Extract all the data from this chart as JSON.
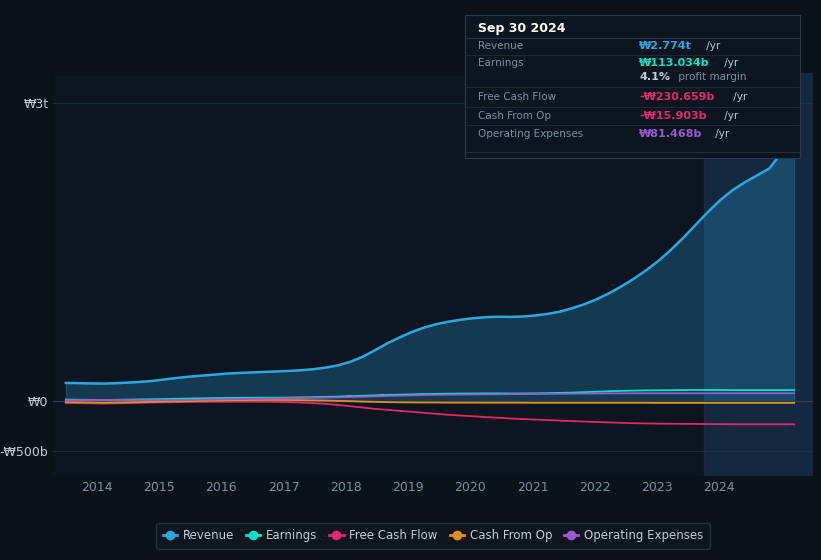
{
  "background_color": "#0b1219",
  "plot_bg_color": "#0d1520",
  "grid_color": "#1e2d3d",
  "xlabel_color": "#7a8fa0",
  "ylabel_color": "#c0ccd8",
  "revenue_color": "#29a8e0",
  "earnings_color": "#00e5c8",
  "fcf_color": "#e0286e",
  "cashfromop_color": "#e09020",
  "opex_color": "#9b59d0",
  "highlight_color": "#1a3a5c",
  "revenue": [
    185,
    183,
    180,
    178,
    182,
    188,
    195,
    205,
    220,
    235,
    248,
    258,
    268,
    278,
    285,
    290,
    295,
    300,
    305,
    312,
    322,
    338,
    360,
    395,
    445,
    510,
    580,
    640,
    695,
    740,
    775,
    800,
    820,
    835,
    845,
    850,
    848,
    852,
    862,
    878,
    900,
    935,
    975,
    1025,
    1085,
    1155,
    1230,
    1315,
    1410,
    1520,
    1640,
    1770,
    1900,
    2020,
    2120,
    2200,
    2270,
    2340,
    2500,
    2774
  ],
  "earnings": [
    18,
    16,
    15,
    14,
    15,
    17,
    19,
    21,
    23,
    26,
    28,
    30,
    32,
    34,
    35,
    36,
    37,
    37,
    38,
    40,
    42,
    45,
    48,
    52,
    56,
    60,
    64,
    67,
    70,
    73,
    75,
    77,
    78,
    79,
    80,
    80,
    79,
    79,
    80,
    82,
    85,
    88,
    92,
    97,
    101,
    105,
    108,
    110,
    111,
    112,
    113,
    114,
    114,
    114,
    113,
    113,
    113,
    113,
    113,
    113
  ],
  "fcf": [
    -15,
    -18,
    -20,
    -22,
    -20,
    -18,
    -15,
    -12,
    -10,
    -8,
    -6,
    -5,
    -4,
    -3,
    -2,
    -2,
    -3,
    -5,
    -8,
    -12,
    -18,
    -25,
    -35,
    -48,
    -62,
    -75,
    -85,
    -95,
    -105,
    -115,
    -125,
    -135,
    -143,
    -150,
    -158,
    -165,
    -172,
    -178,
    -183,
    -188,
    -193,
    -198,
    -203,
    -208,
    -212,
    -216,
    -220,
    -222,
    -224,
    -225,
    -226,
    -227,
    -228,
    -229,
    -230,
    -230,
    -230,
    -230,
    -230,
    -231
  ],
  "cashfromop": [
    -8,
    -10,
    -12,
    -14,
    -12,
    -10,
    -8,
    -5,
    -2,
    0,
    2,
    5,
    8,
    10,
    12,
    13,
    14,
    14,
    13,
    12,
    10,
    8,
    5,
    2,
    -2,
    -5,
    -8,
    -10,
    -11,
    -12,
    -12,
    -13,
    -13,
    -13,
    -14,
    -14,
    -14,
    -14,
    -15,
    -15,
    -15,
    -15,
    -15,
    -15,
    -15,
    -15,
    -15,
    -15,
    -16,
    -16,
    -16,
    -16,
    -16,
    -16,
    -16,
    -16,
    -16,
    -16,
    -16,
    -16
  ],
  "opex": [
    10,
    12,
    13,
    14,
    14,
    13,
    12,
    12,
    13,
    14,
    15,
    17,
    19,
    21,
    23,
    25,
    27,
    29,
    31,
    33,
    35,
    37,
    40,
    43,
    46,
    50,
    54,
    57,
    60,
    63,
    65,
    67,
    68,
    69,
    70,
    71,
    72,
    73,
    74,
    75,
    76,
    77,
    78,
    79,
    80,
    80,
    81,
    81,
    81,
    81,
    81,
    81,
    81,
    81,
    81,
    81,
    81,
    81,
    81,
    81
  ],
  "info_box": {
    "bg_color": "#0d1520",
    "border_color": "#2a3a4a",
    "title": "Sep 30 2024",
    "rows": [
      {
        "label": "Revenue",
        "value": "₩2.774t",
        "value_color": "#29a8e0",
        "suffix": " /yr",
        "suffix_color": "#c0ccd8"
      },
      {
        "label": "Earnings",
        "value": "₩113.034b",
        "value_color": "#00e5c8",
        "suffix": " /yr",
        "suffix_color": "#c0ccd8"
      },
      {
        "label": "",
        "value": "4.1%",
        "value_color": "#c0ccd8",
        "suffix": " profit margin",
        "suffix_color": "#7a8fa0"
      },
      {
        "label": "Free Cash Flow",
        "value": "-₩230.659b",
        "value_color": "#e0286e",
        "suffix": " /yr",
        "suffix_color": "#c0ccd8"
      },
      {
        "label": "Cash From Op",
        "value": "-₩15.903b",
        "value_color": "#e0286e",
        "suffix": " /yr",
        "suffix_color": "#c0ccd8"
      },
      {
        "label": "Operating Expenses",
        "value": "₩81.468b",
        "value_color": "#9b59d0",
        "suffix": " /yr",
        "suffix_color": "#c0ccd8"
      }
    ]
  },
  "legend": [
    {
      "label": "Revenue",
      "color": "#29a8e0"
    },
    {
      "label": "Earnings",
      "color": "#00e5c8"
    },
    {
      "label": "Free Cash Flow",
      "color": "#e0286e"
    },
    {
      "label": "Cash From Op",
      "color": "#e09020"
    },
    {
      "label": "Operating Expenses",
      "color": "#9b59d0"
    }
  ],
  "ytick_labels": [
    "₩3t",
    "₩0",
    "-₩500b"
  ],
  "ytick_vals": [
    3000,
    0,
    -500
  ],
  "xtick_years": [
    2014,
    2015,
    2016,
    2017,
    2018,
    2019,
    2020,
    2021,
    2022,
    2023,
    2024
  ],
  "xlim": [
    2013.3,
    2025.5
  ],
  "ylim": [
    -750,
    3300
  ]
}
